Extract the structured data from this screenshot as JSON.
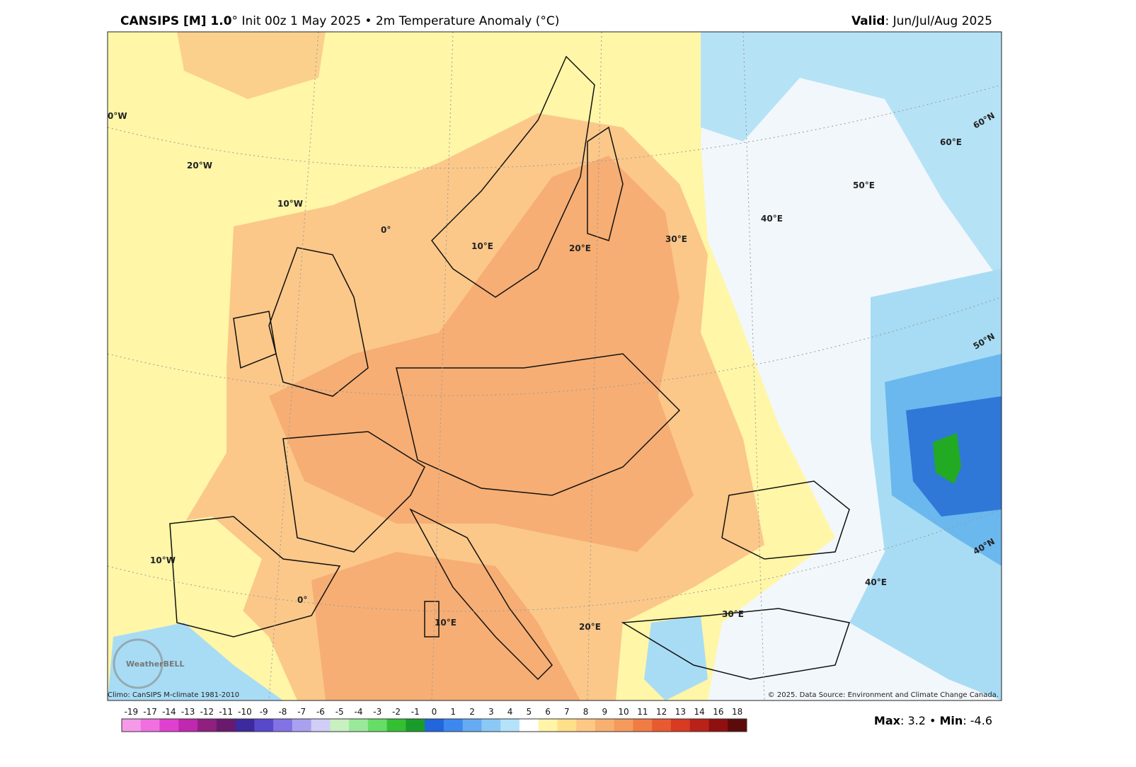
{
  "header": {
    "title_bold": "CANSIPS [M] 1.0",
    "title_rest": "° Init 00z 1 May 2025 • 2m Temperature Anomaly (°C)",
    "valid_bold": "Valid",
    "valid_rest": ": Jun/Jul/Aug 2025"
  },
  "map": {
    "grid_labels": [
      "0°W",
      "20°W",
      "10°W",
      "0°",
      "10°E",
      "20°E",
      "30°E",
      "40°E",
      "50°E",
      "60°E",
      "60°N",
      "50°N",
      "40°N",
      "10°W",
      "0°",
      "10°E",
      "20°E",
      "30°E",
      "40°E"
    ],
    "climo": "Climo: CanSIPS M-climate 1981-2010",
    "source": "© 2025. Data Source: Environment and Climate Change Canada.",
    "logo": "WeatherBELL"
  },
  "colorbar": {
    "labels": [
      "-19",
      "-17",
      "-14",
      "-13",
      "-12",
      "-11",
      "-10",
      "-9",
      "-8",
      "-7",
      "-6",
      "-5",
      "-4",
      "-3",
      "-2",
      "-1",
      "0",
      "1",
      "2",
      "3",
      "4",
      "5",
      "6",
      "7",
      "8",
      "9",
      "10",
      "11",
      "12",
      "13",
      "14",
      "16",
      "18"
    ],
    "colors": [
      "#f59ae8",
      "#f070e0",
      "#e040d0",
      "#c028b0",
      "#902080",
      "#6a1a6e",
      "#3c2a9e",
      "#5848cc",
      "#8272e4",
      "#aaa0f0",
      "#d0cef6",
      "#c8f0c0",
      "#9ae89a",
      "#66dd66",
      "#33c033",
      "#1a9c2a",
      "#2266dd",
      "#3c88ee",
      "#66aaf2",
      "#8cc8f6",
      "#b4e2fa",
      "#ffffff",
      "#fff4a8",
      "#ffe08a",
      "#fcc884",
      "#f8b070",
      "#f49a5c",
      "#f07c44",
      "#e85a30",
      "#d83a22",
      "#b82218",
      "#901010",
      "#5c0a0a"
    ]
  },
  "footer": {
    "max_bold": "Max",
    "max_rest": ": 3.2 • ",
    "min_bold": "Min",
    "min_rest": ": -4.6"
  }
}
